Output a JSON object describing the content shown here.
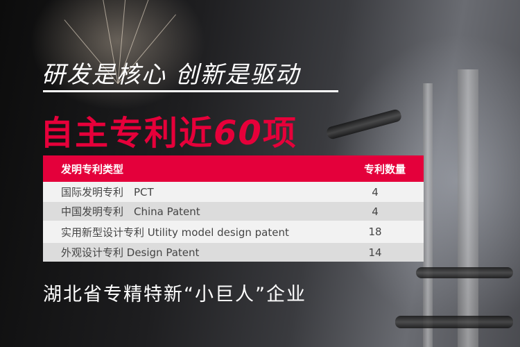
{
  "headline": "研发是核心 创新是驱动",
  "title": {
    "prefix": "自主专利近",
    "number": "60",
    "suffix": "项"
  },
  "table": {
    "headers": [
      "发明专利类型",
      "专利数量"
    ],
    "rows": [
      {
        "type": "国际发明专利　PCT",
        "count": "4"
      },
      {
        "type": "中国发明专利　China Patent",
        "count": "4"
      },
      {
        "type": "实用新型设计专利  Utility model design patent",
        "count": "18"
      },
      {
        "type": "外观设计专利  Design Patent",
        "count": "14"
      }
    ]
  },
  "footer": "湖北省专精特新“小巨人”企业",
  "colors": {
    "accent": "#e4003b",
    "row_light": "#f2f2f2",
    "row_dark": "#dcdcdc"
  }
}
